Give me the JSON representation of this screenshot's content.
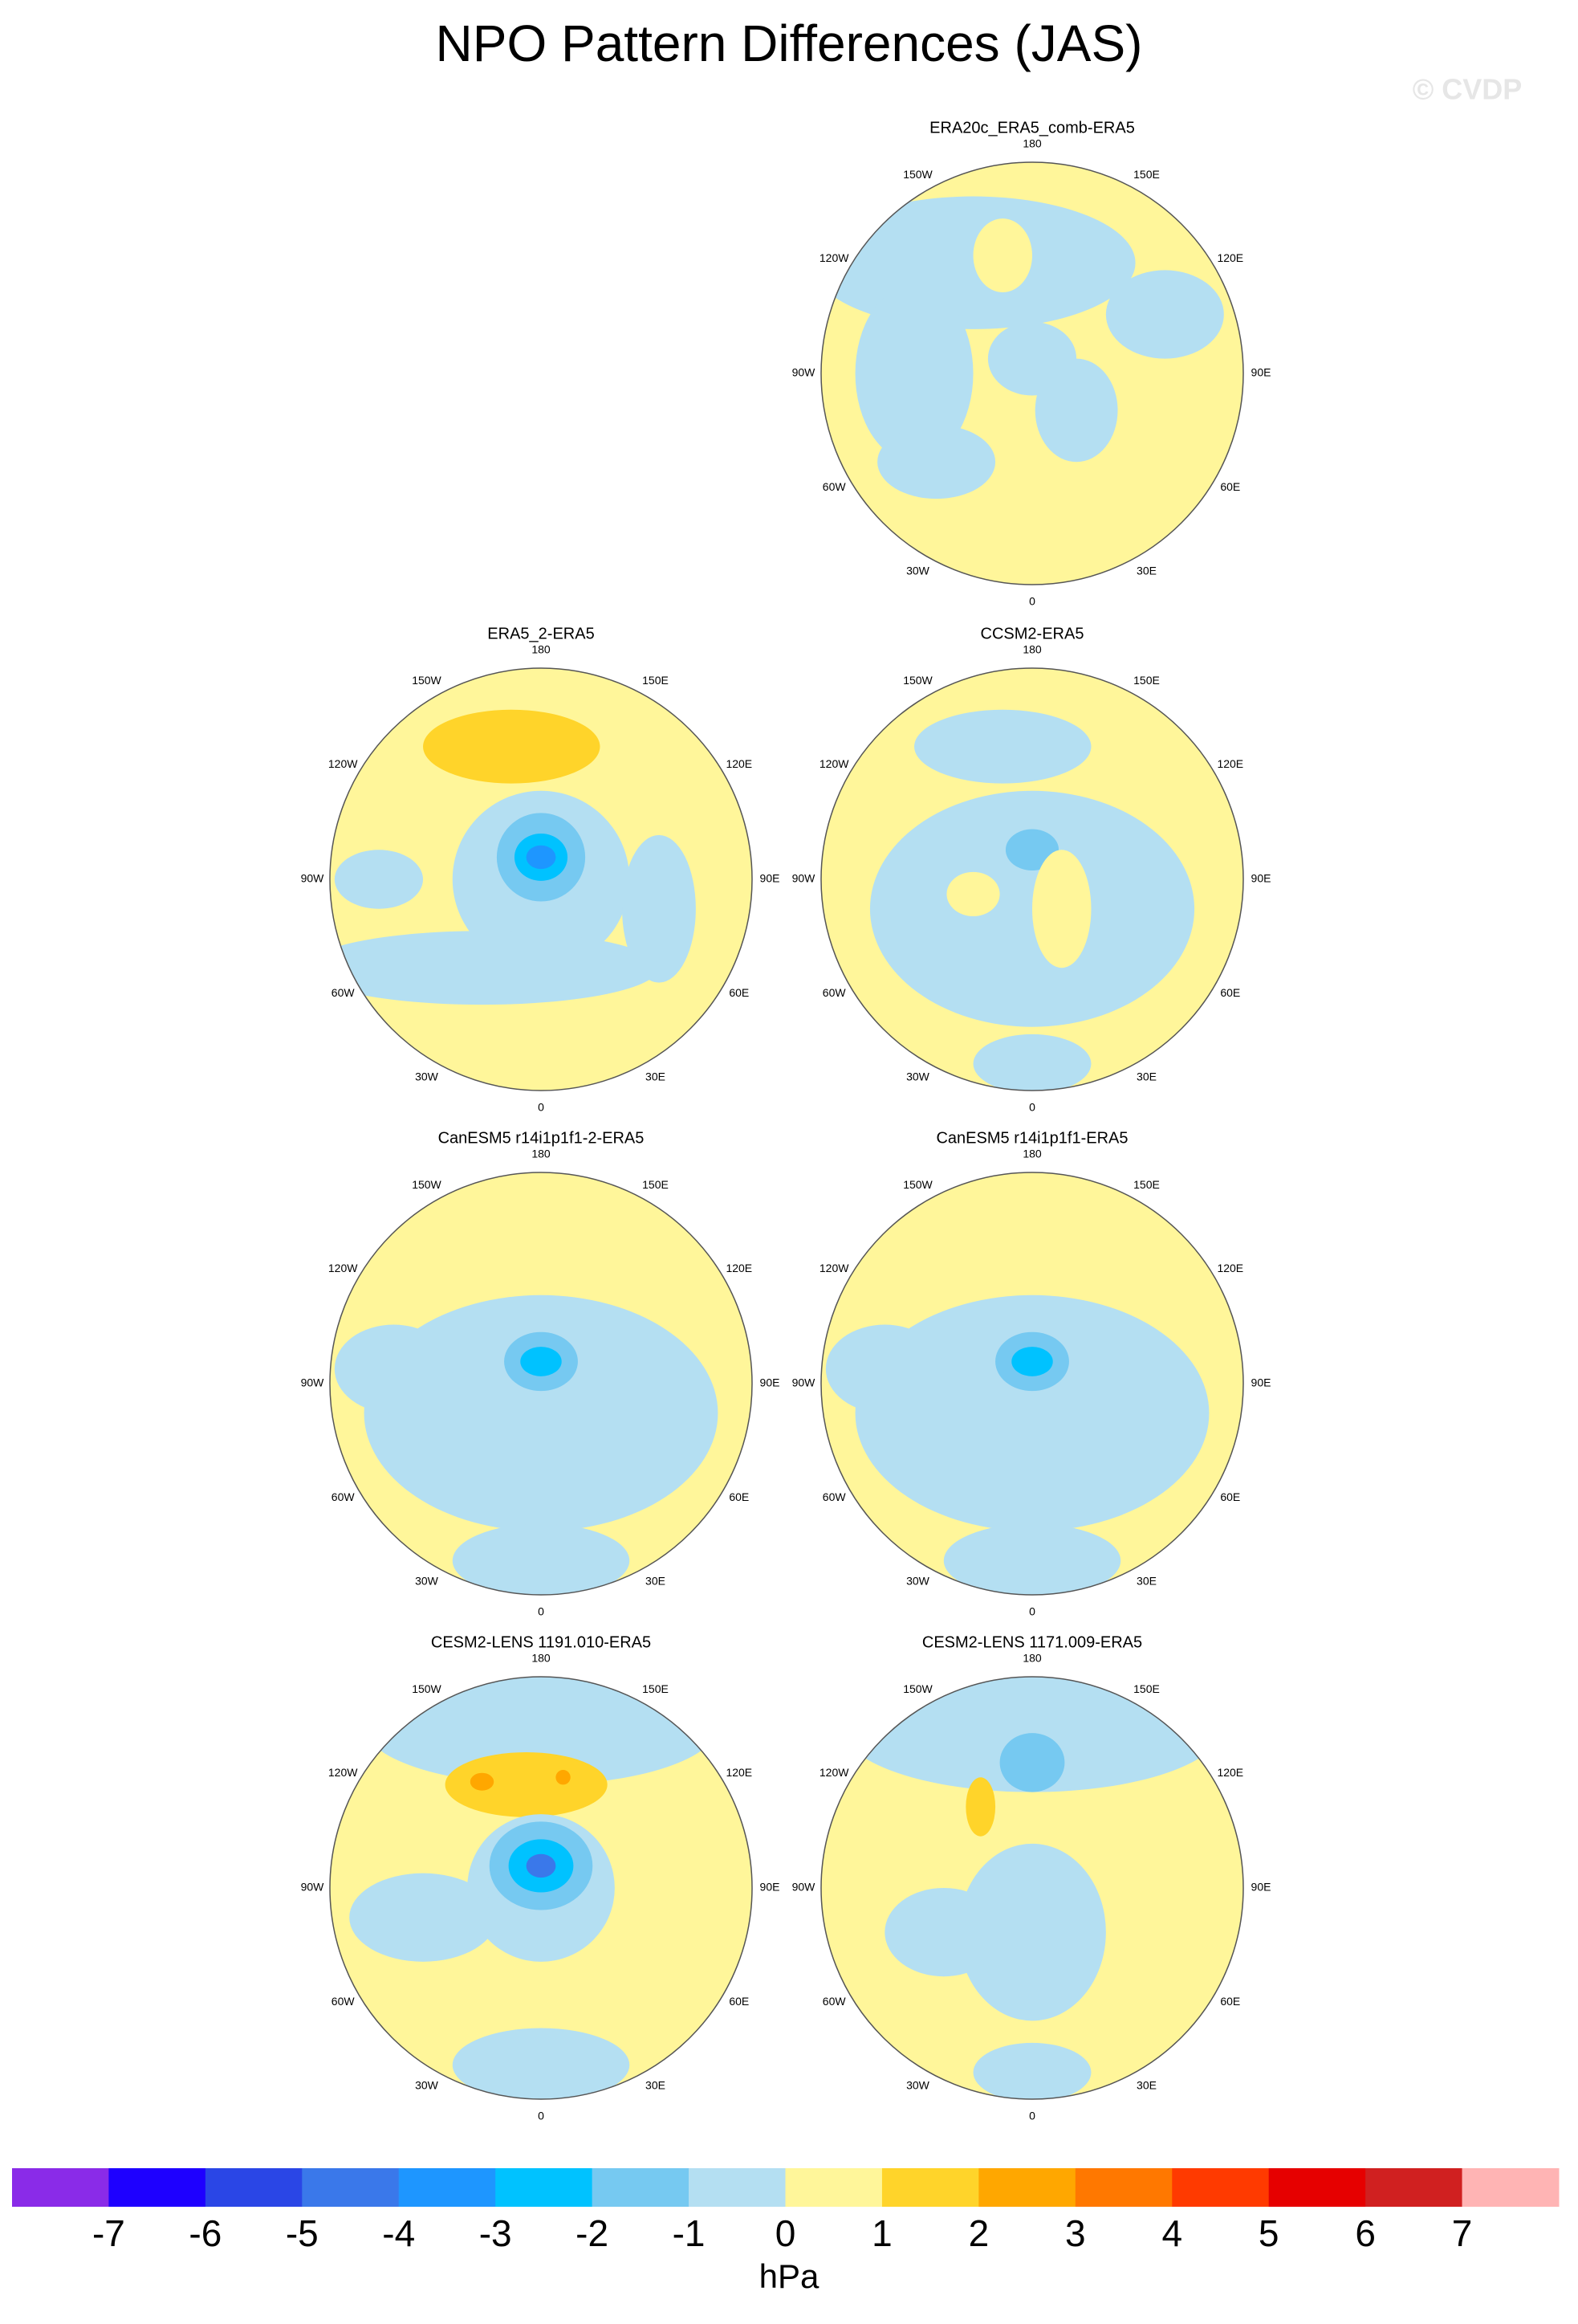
{
  "title": "NPO Pattern Differences (JAS)",
  "watermark": "© CVDP",
  "lon_labels": [
    "180",
    "150E",
    "120E",
    "90E",
    "60E",
    "30E",
    "0",
    "30W",
    "60W",
    "90W",
    "120W",
    "150W"
  ],
  "panels": [
    {
      "title": "ERA20c_ERA5_comb-ERA5"
    },
    {
      "title": "ERA5_2-ERA5"
    },
    {
      "title": "CCSM2-ERA5"
    },
    {
      "title": "CanESM5 r14i1p1f1-2-ERA5"
    },
    {
      "title": "CanESM5 r14i1p1f1-ERA5"
    },
    {
      "title": "CESM2-LENS 1191.010-ERA5"
    },
    {
      "title": "CESM2-LENS 1171.009-ERA5"
    }
  ],
  "colorbar": {
    "levels": [
      -7,
      -6,
      -5,
      -4,
      -3,
      -2,
      -1,
      0,
      1,
      2,
      3,
      4,
      5,
      6,
      7
    ],
    "colors": [
      "#8a2be8",
      "#1e00ff",
      "#2a46e6",
      "#3a78ea",
      "#1e96ff",
      "#00c2ff",
      "#76c9f1",
      "#b4dff2",
      "#fff69a",
      "#ffd42a",
      "#ffa700",
      "#ff7800",
      "#ff3a00",
      "#e60000",
      "#d02020",
      "#ffb4b4"
    ],
    "label": "hPa"
  }
}
